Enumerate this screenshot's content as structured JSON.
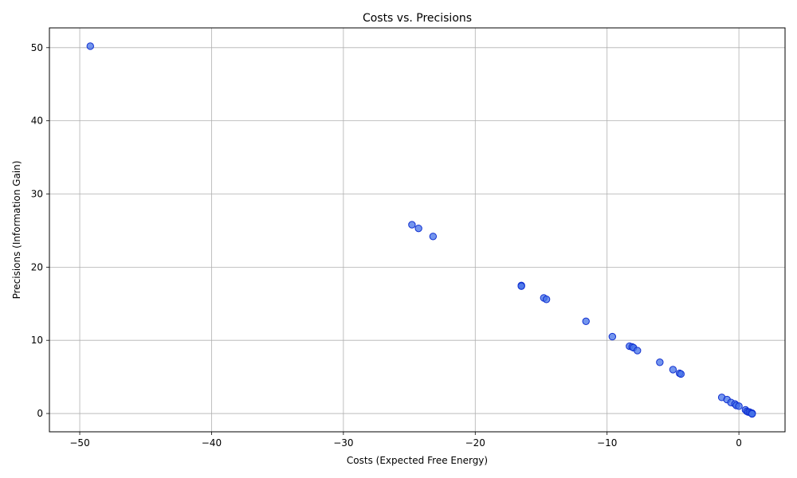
{
  "chart_data": {
    "type": "scatter",
    "title": "Costs vs. Precisions",
    "xlabel": "Costs (Expected Free Energy)",
    "ylabel": "Precisions (Information Gain)",
    "xlim": [
      -52.3,
      3.5
    ],
    "ylim": [
      -2.5,
      52.7
    ],
    "xticks": [
      -50,
      -40,
      -30,
      -20,
      -10,
      0
    ],
    "yticks": [
      0,
      10,
      20,
      30,
      40,
      50
    ],
    "grid": true,
    "marker_fill": "#4472e8",
    "marker_edge": "#1030d0",
    "marker_alpha": 0.75,
    "points": [
      {
        "x": -49.2,
        "y": 50.2
      },
      {
        "x": -24.8,
        "y": 25.8
      },
      {
        "x": -24.3,
        "y": 25.3
      },
      {
        "x": -23.2,
        "y": 24.2
      },
      {
        "x": -16.5,
        "y": 17.5
      },
      {
        "x": -16.5,
        "y": 17.4
      },
      {
        "x": -14.8,
        "y": 15.8
      },
      {
        "x": -14.6,
        "y": 15.6
      },
      {
        "x": -11.6,
        "y": 12.6
      },
      {
        "x": -9.6,
        "y": 10.5
      },
      {
        "x": -8.3,
        "y": 9.2
      },
      {
        "x": -8.1,
        "y": 9.1
      },
      {
        "x": -8.0,
        "y": 9.0
      },
      {
        "x": -7.7,
        "y": 8.6
      },
      {
        "x": -6.0,
        "y": 7.0
      },
      {
        "x": -5.0,
        "y": 6.0
      },
      {
        "x": -4.5,
        "y": 5.5
      },
      {
        "x": -4.4,
        "y": 5.4
      },
      {
        "x": -1.3,
        "y": 2.2
      },
      {
        "x": -0.9,
        "y": 1.9
      },
      {
        "x": -0.6,
        "y": 1.5
      },
      {
        "x": -0.3,
        "y": 1.3
      },
      {
        "x": -0.2,
        "y": 1.1
      },
      {
        "x": 0.0,
        "y": 1.0
      },
      {
        "x": 0.5,
        "y": 0.5
      },
      {
        "x": 0.6,
        "y": 0.3
      },
      {
        "x": 0.7,
        "y": 0.2
      },
      {
        "x": 0.8,
        "y": 0.2
      },
      {
        "x": 0.9,
        "y": 0.1
      },
      {
        "x": 1.0,
        "y": 0.05
      },
      {
        "x": 1.0,
        "y": 0.0
      },
      {
        "x": 1.0,
        "y": -0.05
      }
    ]
  }
}
